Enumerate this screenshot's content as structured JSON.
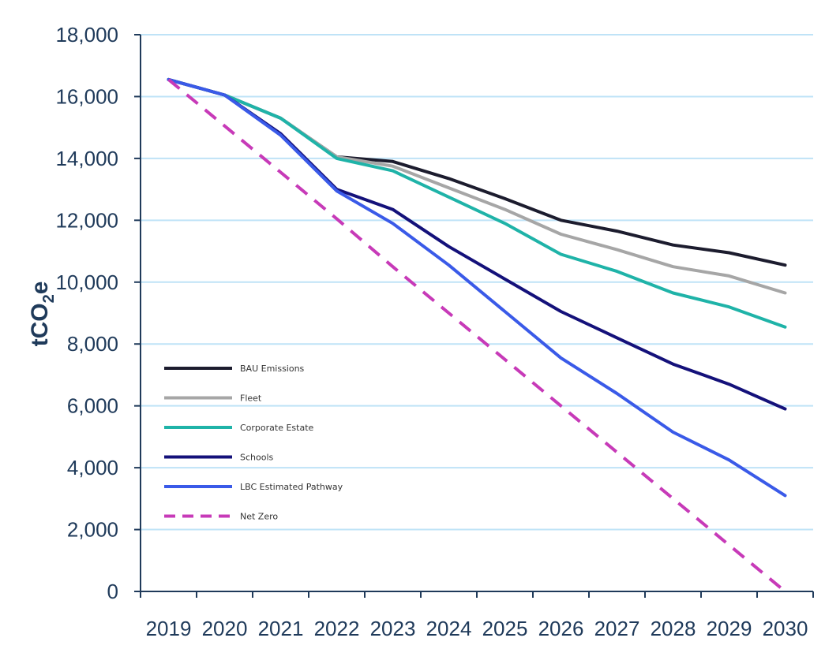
{
  "chart_data": {
    "type": "line",
    "title": "",
    "xlabel": "",
    "ylabel": "tCO",
    "ylabel_sub": "2",
    "ylabel_tail": "e",
    "x": [
      "2019",
      "2020",
      "2021",
      "2022",
      "2023",
      "2024",
      "2025",
      "2026",
      "2027",
      "2028",
      "2029",
      "2030"
    ],
    "ylim": [
      0,
      18000
    ],
    "yticks": [
      0,
      2000,
      4000,
      6000,
      8000,
      10000,
      12000,
      14000,
      16000,
      18000
    ],
    "ytick_labels": [
      "0",
      "2,000",
      "4,000",
      "6,000",
      "8,000",
      "10,000",
      "12,000",
      "14,000",
      "16,000",
      "18,000"
    ],
    "grid": true,
    "legend_position": "center-left",
    "series": [
      {
        "name": "BAU Emissions",
        "color": "#1c1c2e",
        "dashed": false,
        "values": [
          16550,
          16050,
          15300,
          14050,
          13900,
          13350,
          12700,
          12000,
          11650,
          11200,
          10950,
          10550
        ]
      },
      {
        "name": "Fleet",
        "color": "#a6a6a6",
        "dashed": false,
        "values": [
          16550,
          16050,
          15300,
          14050,
          13750,
          13050,
          12350,
          11550,
          11050,
          10500,
          10200,
          9650
        ]
      },
      {
        "name": "Corporate Estate",
        "color": "#1fb3a8",
        "dashed": false,
        "values": [
          16550,
          16050,
          15300,
          14000,
          13600,
          12750,
          11900,
          10900,
          10350,
          9650,
          9200,
          8550
        ]
      },
      {
        "name": "Schools",
        "color": "#14117a",
        "dashed": false,
        "values": [
          16550,
          16050,
          14800,
          13000,
          12350,
          11150,
          10100,
          9050,
          8200,
          7350,
          6700,
          5900
        ]
      },
      {
        "name": "LBC Estimated Pathway",
        "color": "#3a5ae8",
        "dashed": false,
        "values": [
          16550,
          16050,
          14750,
          12950,
          11900,
          10550,
          9050,
          7550,
          6400,
          5150,
          4250,
          3100
        ]
      },
      {
        "name": "Net Zero",
        "color": "#c73ab8",
        "dashed": true,
        "values": [
          16550,
          15050,
          13550,
          12050,
          10500,
          9000,
          7500,
          6000,
          4500,
          3000,
          1500,
          0
        ]
      }
    ]
  }
}
